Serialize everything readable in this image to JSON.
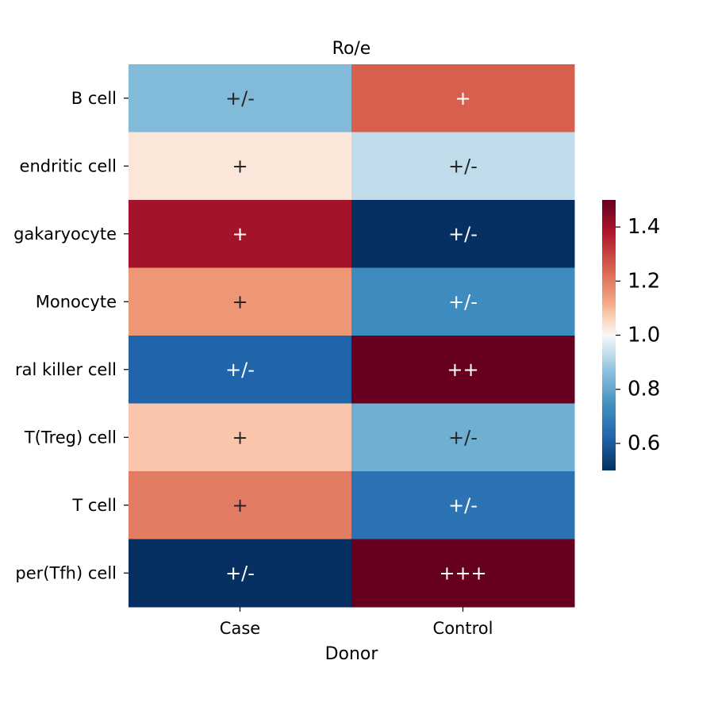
{
  "chart_data": {
    "type": "heatmap",
    "title": "Ro/e",
    "xlabel": "Donor",
    "ylabel": "",
    "x": [
      "Case",
      "Control"
    ],
    "y": [
      "B cell",
      "Dendritic cell",
      "Megakaryocyte",
      "Monocyte",
      "Natural killer cell",
      "T(Treg) cell",
      "T cell",
      "T helper(Tfh) cell"
    ],
    "y_display": [
      "B cell",
      "endritic cell",
      "gakaryocyte",
      "Monocyte",
      "ral killer cell",
      "T(Treg) cell",
      "T cell",
      "per(Tfh) cell"
    ],
    "values": [
      [
        0.85,
        1.25
      ],
      [
        1.03,
        0.93
      ],
      [
        1.4,
        0.5
      ],
      [
        1.15,
        0.73
      ],
      [
        0.62,
        1.6
      ],
      [
        1.08,
        0.82
      ],
      [
        1.2,
        0.66
      ],
      [
        0.5,
        1.7
      ]
    ],
    "annotations": [
      [
        "+/-",
        "+"
      ],
      [
        "+",
        "+/-"
      ],
      [
        "+",
        "+/-"
      ],
      [
        "+",
        "+/-"
      ],
      [
        "+/-",
        "++"
      ],
      [
        "+",
        "+/-"
      ],
      [
        "+",
        "+/-"
      ],
      [
        "+/-",
        "+++"
      ]
    ],
    "colormap": "RdBu_r",
    "vmin": 0.5,
    "vmax": 1.5,
    "colorbar_ticks": [
      "0.6",
      "0.8",
      "1.0",
      "1.2",
      "1.4"
    ],
    "colorbar_tick_values": [
      0.6,
      0.8,
      1.0,
      1.2,
      1.4
    ],
    "colors": {
      "low": "#053061",
      "mid": "#f7f7f7",
      "high": "#67001f"
    }
  }
}
